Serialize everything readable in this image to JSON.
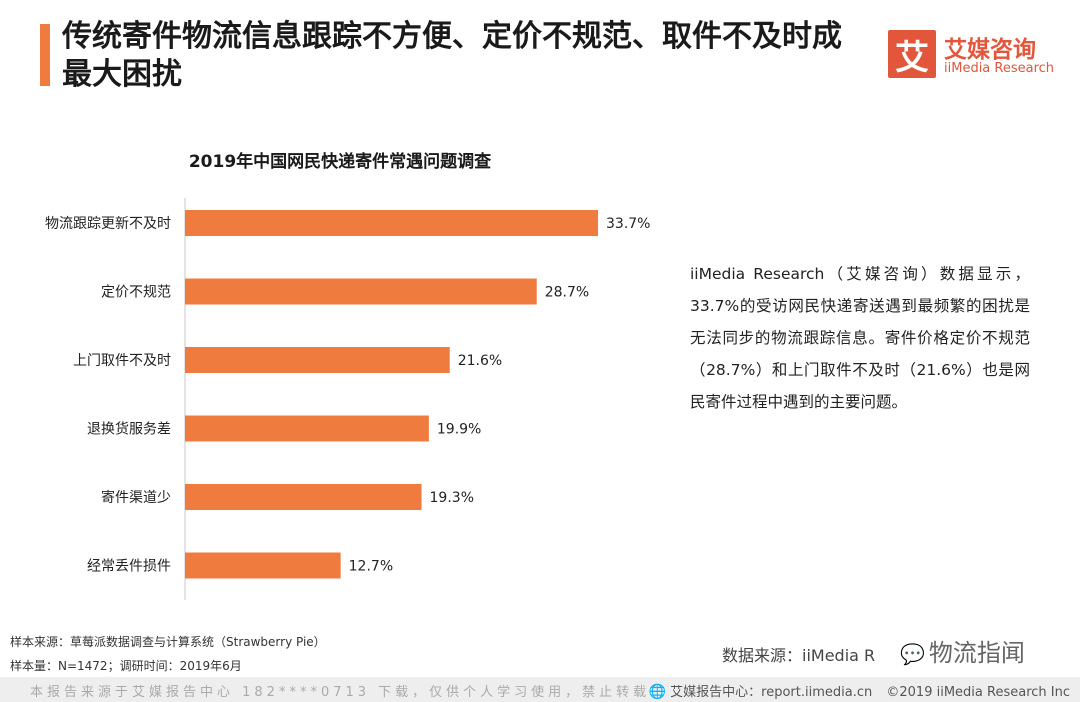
{
  "header": {
    "title": "传统寄件物流信息跟踪不方便、定价不规范、取件不及时成最大困扰"
  },
  "logo": {
    "mark": "艾",
    "name_cn": "艾媒咨询",
    "name_en": "iiMedia Research"
  },
  "chart_data": {
    "type": "bar",
    "orientation": "horizontal",
    "title": "2019年中国网民快递寄件常遇问题调查",
    "categories": [
      "物流跟踪更新不及时",
      "定价不规范",
      "上门取件不及时",
      "退换货服务差",
      "寄件渠道少",
      "经常丢件损件"
    ],
    "values": [
      33.7,
      28.7,
      21.6,
      19.9,
      19.3,
      12.7
    ],
    "value_labels": [
      "33.7%",
      "28.7%",
      "21.6%",
      "19.9%",
      "19.3%",
      "12.7%"
    ],
    "xlim": [
      0,
      33.7
    ],
    "bar_color": "#f07b3f",
    "grid": false
  },
  "commentary": "iiMedia Research（艾媒咨询）数据显示，33.7%的受访网民快递寄送遇到最频繁的困扰是无法同步的物流跟踪信息。寄件价格定价不规范（28.7%）和上门取件不及时（21.6%）也是网民寄件过程中遇到的主要问题。",
  "footnotes": {
    "sample_source": "样本来源：草莓派数据调查与计算系统（Strawberry Pie）",
    "sample_size": "样本量：N=1472；调研时间：2019年6月"
  },
  "source": "数据来源：iiMedia R",
  "watermark": {
    "icon": "wechat-icon",
    "text": "物流指闻"
  },
  "footer": {
    "left": "本报告来源于艾媒报告中心 182****0713 下载，仅供个人学习使用，禁止转载",
    "brand": "艾媒报告中心：report.iimedia.cn",
    "copyright": "©2019  iiMedia Research  Inc"
  },
  "colors": {
    "accent": "#f07b3f",
    "brand": "#e2563b"
  }
}
